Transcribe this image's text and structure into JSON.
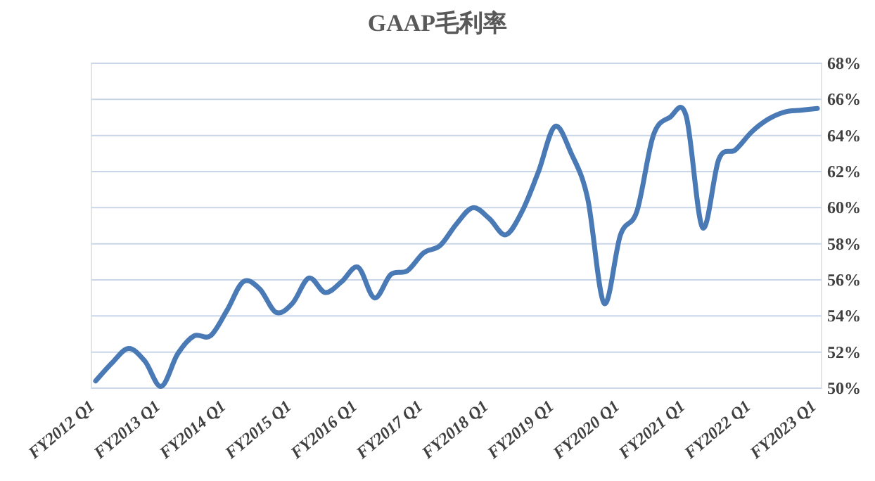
{
  "chart_data": {
    "type": "line",
    "title": "GAAP毛利率",
    "categories": [
      "FY2012 Q1",
      null,
      null,
      null,
      "FY2013 Q1",
      null,
      null,
      null,
      "FY2014 Q1",
      null,
      null,
      null,
      "FY2015 Q1",
      null,
      null,
      null,
      "FY2016 Q1",
      null,
      null,
      null,
      "FY2017 Q1",
      null,
      null,
      null,
      "FY2018 Q1",
      null,
      null,
      null,
      "FY2019 Q1",
      null,
      null,
      null,
      "FY2020 Q1",
      null,
      null,
      null,
      "FY2021 Q1",
      null,
      null,
      null,
      "FY2022 Q1",
      null,
      null,
      null,
      "FY2023 Q1"
    ],
    "series": [
      {
        "color": "#4a7ab5",
        "values": [
          50.4,
          51.4,
          52.2,
          51.5,
          50.1,
          51.9,
          52.9,
          52.9,
          54.3,
          55.9,
          55.5,
          54.2,
          54.7,
          56.1,
          55.3,
          55.9,
          56.7,
          55.0,
          56.3,
          56.5,
          57.5,
          57.9,
          59.1,
          60.0,
          59.4,
          58.5,
          59.8,
          62.0,
          64.5,
          63.0,
          60.5,
          54.7,
          58.5,
          59.8,
          64.0,
          65.0,
          65.1,
          58.9,
          62.7,
          63.2,
          64.2,
          64.9,
          65.3,
          65.4,
          65.5
        ]
      }
    ],
    "ylim": [
      50,
      68
    ],
    "yticks": [
      {
        "value": 50,
        "label": "50%"
      },
      {
        "value": 52,
        "label": "52%"
      },
      {
        "value": 54,
        "label": "54%"
      },
      {
        "value": 56,
        "label": "56%"
      },
      {
        "value": 58,
        "label": "58%"
      },
      {
        "value": 60,
        "label": "60%"
      },
      {
        "value": 62,
        "label": "62%"
      },
      {
        "value": 64,
        "label": "64%"
      },
      {
        "value": 66,
        "label": "66%"
      },
      {
        "value": 68,
        "label": "68%"
      }
    ],
    "grid": "y",
    "marker": "none",
    "line_style": "solid"
  }
}
